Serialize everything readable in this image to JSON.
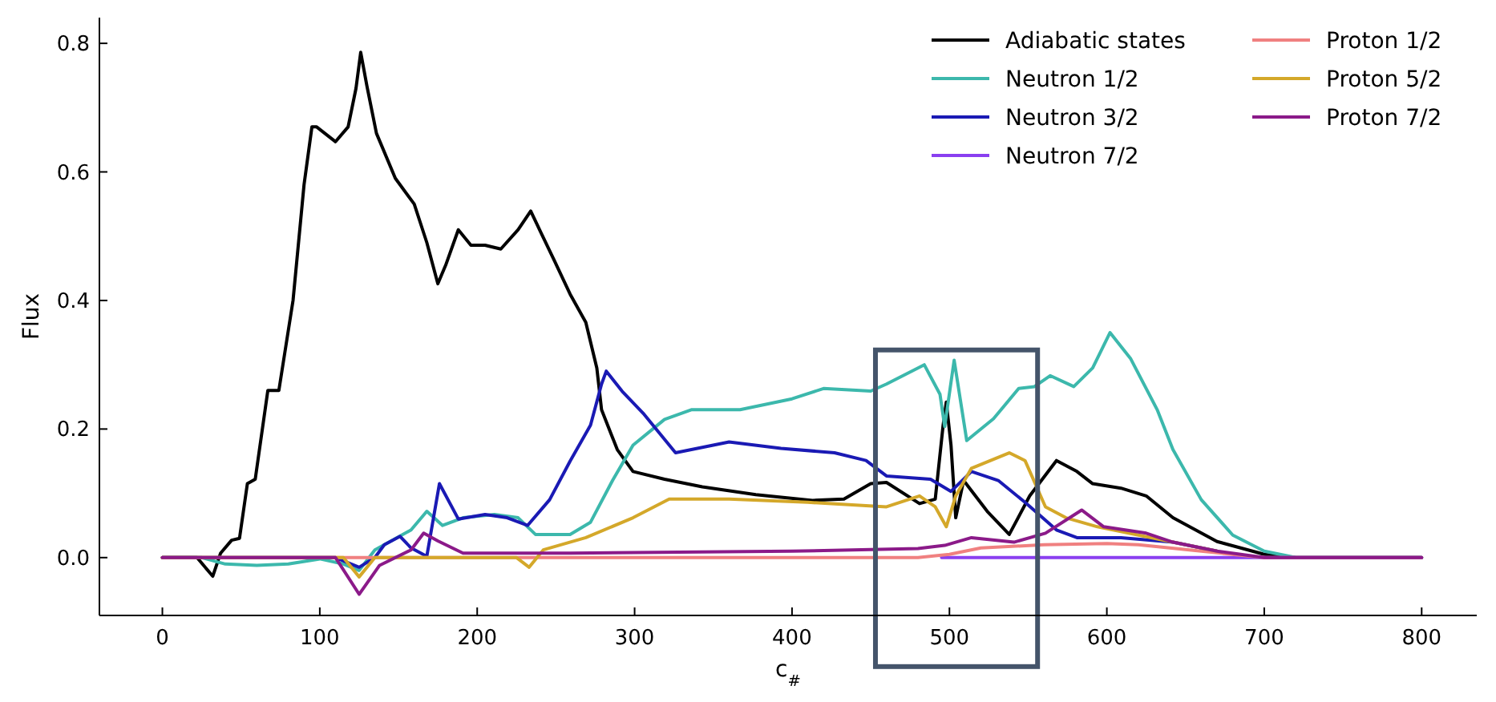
{
  "chart_data": {
    "type": "line",
    "xlabel": "c$_{#}$",
    "ylabel": "Flux",
    "xlim": [
      -40,
      835
    ],
    "ylim": [
      -0.09,
      0.84
    ],
    "xticks": [
      0,
      100,
      200,
      300,
      400,
      500,
      600,
      700,
      800
    ],
    "yticks": [
      {
        "value": 0,
        "label": "0.0"
      },
      {
        "value": 0.2,
        "label": "0.2"
      },
      {
        "value": 0.4,
        "label": "0.4"
      },
      {
        "value": 0.6,
        "label": "0.6"
      },
      {
        "value": 0.8,
        "label": "0.8"
      }
    ],
    "grid": false,
    "legend": "top right",
    "marker": "none",
    "line_style": "solid",
    "series": [
      {
        "name": "Adiabatic states",
        "color": "#000000",
        "x": [
          0,
          22,
          32,
          37,
          44,
          49,
          54,
          59,
          67,
          74,
          83,
          90,
          95,
          98,
          110,
          118,
          123,
          126,
          130,
          136,
          148,
          160,
          168,
          175,
          180,
          188,
          196,
          205,
          215,
          226,
          234,
          241,
          249,
          259,
          269,
          276,
          279,
          289,
          299,
          319,
          343,
          377,
          413,
          433,
          450,
          460,
          481,
          491,
          496,
          498,
          501,
          504,
          509,
          524,
          538,
          551,
          568,
          581,
          591,
          609,
          625,
          642,
          670,
          700,
          720,
          800
        ],
        "values": [
          0,
          0,
          -0.029,
          0.007,
          0.027,
          0.03,
          0.115,
          0.122,
          0.26,
          0.26,
          0.4,
          0.58,
          0.67,
          0.67,
          0.647,
          0.67,
          0.73,
          0.786,
          0.733,
          0.66,
          0.59,
          0.55,
          0.49,
          0.426,
          0.455,
          0.51,
          0.486,
          0.486,
          0.48,
          0.51,
          0.539,
          0.503,
          0.462,
          0.41,
          0.366,
          0.295,
          0.23,
          0.168,
          0.134,
          0.122,
          0.11,
          0.098,
          0.089,
          0.091,
          0.115,
          0.117,
          0.084,
          0.091,
          0.206,
          0.242,
          0.175,
          0.062,
          0.12,
          0.072,
          0.036,
          0.096,
          0.151,
          0.134,
          0.115,
          0.108,
          0.096,
          0.062,
          0.025,
          0.005,
          0,
          0
        ]
      },
      {
        "name": "Neutron 1/2",
        "color": "#3cb8ac",
        "x": [
          0,
          25,
          40,
          60,
          80,
          100,
          115,
          125,
          135,
          158,
          168,
          178,
          191,
          211,
          226,
          237,
          259,
          272,
          286,
          299,
          319,
          336,
          367,
          400,
          420,
          450,
          460,
          484,
          494,
          497,
          503,
          511,
          528,
          544,
          554,
          564,
          579,
          591,
          602,
          615,
          632,
          642,
          660,
          680,
          700,
          720,
          800
        ],
        "values": [
          0,
          0,
          -0.01,
          -0.012,
          -0.01,
          -0.002,
          -0.01,
          -0.02,
          0.012,
          0.043,
          0.072,
          0.05,
          0.062,
          0.067,
          0.062,
          0.036,
          0.036,
          0.055,
          0.12,
          0.175,
          0.215,
          0.23,
          0.23,
          0.247,
          0.263,
          0.259,
          0.27,
          0.3,
          0.254,
          0.204,
          0.307,
          0.182,
          0.216,
          0.263,
          0.266,
          0.283,
          0.266,
          0.295,
          0.35,
          0.31,
          0.23,
          0.168,
          0.09,
          0.035,
          0.01,
          0,
          0
        ]
      },
      {
        "name": "Neutron 3/2",
        "color": "#1a1ab4",
        "x": [
          0,
          110,
          125,
          135,
          141,
          151,
          158,
          168,
          176,
          188,
          205,
          219,
          232,
          246,
          259,
          272,
          279,
          282,
          292,
          306,
          326,
          360,
          393,
          427,
          447,
          460,
          488,
          501,
          514,
          531,
          548,
          568,
          581,
          609,
          642,
          670
        ],
        "values": [
          0,
          0,
          -0.015,
          0,
          0.02,
          0.033,
          0.015,
          0.002,
          0.115,
          0.06,
          0.067,
          0.062,
          0.05,
          0.09,
          0.15,
          0.206,
          0.27,
          0.29,
          0.259,
          0.223,
          0.163,
          0.18,
          0.17,
          0.163,
          0.151,
          0.127,
          0.122,
          0.103,
          0.134,
          0.12,
          0.086,
          0.043,
          0.031,
          0.031,
          0.024,
          0.01
        ]
      },
      {
        "name": "Neutron 7/2",
        "color": "#8a3ff0",
        "x": [
          495,
          800
        ],
        "values": [
          0,
          0
        ]
      },
      {
        "name": "Proton 1/2",
        "color": "#f08080",
        "x": [
          0,
          480,
          500,
          520,
          560,
          600,
          620,
          660,
          700,
          800
        ],
        "values": [
          0,
          0,
          0.005,
          0.015,
          0.02,
          0.022,
          0.02,
          0.01,
          0,
          0
        ]
      },
      {
        "name": "Proton 5/2",
        "color": "#d4a82a",
        "x": [
          0,
          115,
          125,
          135,
          225,
          233,
          242,
          269,
          299,
          322,
          360,
          410,
          460,
          481,
          491,
          498,
          504,
          514,
          538,
          548,
          561,
          574,
          594,
          642,
          670
        ],
        "values": [
          0,
          0,
          -0.03,
          0,
          0,
          -0.015,
          0.012,
          0.031,
          0.062,
          0.091,
          0.091,
          0.086,
          0.079,
          0.096,
          0.079,
          0.048,
          0.096,
          0.139,
          0.163,
          0.151,
          0.079,
          0.062,
          0.048,
          0.024,
          0.01
        ]
      },
      {
        "name": "Proton 7/2",
        "color": "#8b1a89",
        "x": [
          0,
          110,
          125,
          138,
          158,
          166,
          175,
          191,
          259,
          400,
          480,
          497,
          514,
          541,
          561,
          584,
          598,
          625,
          642,
          670,
          700,
          800
        ],
        "values": [
          0,
          0,
          -0.057,
          -0.012,
          0.012,
          0.038,
          0.026,
          0.007,
          0.007,
          0.01,
          0.014,
          0.019,
          0.031,
          0.024,
          0.038,
          0.074,
          0.048,
          0.038,
          0.024,
          0.01,
          0,
          0
        ]
      }
    ]
  }
}
